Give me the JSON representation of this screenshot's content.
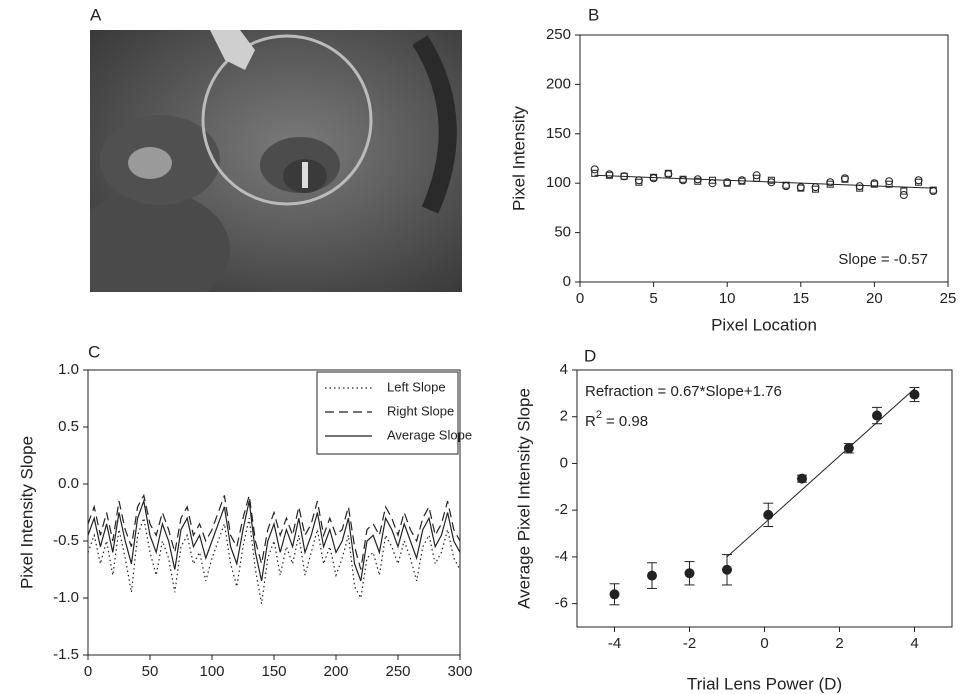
{
  "chart_data": [
    {
      "type": "image",
      "label": "A"
    },
    {
      "type": "scatter",
      "label": "B",
      "color": "#222",
      "x_label": "Pixel Location",
      "y_label": "Pixel Intensity",
      "xlim": [
        0,
        25
      ],
      "xticks": [
        0,
        5,
        10,
        15,
        20,
        25
      ],
      "ylim": [
        0,
        250
      ],
      "yticks": [
        0,
        50,
        100,
        150,
        200,
        250
      ],
      "annotation": "Slope = -0.57",
      "series": [
        {
          "marker": "square",
          "x": [
            1,
            2,
            3,
            4,
            5,
            6,
            7,
            8,
            9,
            10,
            11,
            12,
            13,
            14,
            15,
            16,
            17,
            18,
            19,
            20,
            21,
            22,
            23,
            24
          ],
          "values": [
            110,
            108,
            107,
            101,
            106,
            110,
            104,
            102,
            103,
            100,
            102,
            105,
            103,
            98,
            95,
            94,
            99,
            104,
            95,
            99,
            99,
            92,
            101,
            93
          ]
        },
        {
          "marker": "circle",
          "x": [
            1,
            2,
            3,
            4,
            5,
            6,
            7,
            8,
            9,
            10,
            11,
            12,
            13,
            14,
            15,
            16,
            17,
            18,
            19,
            20,
            21,
            22,
            23,
            24
          ],
          "values": [
            114,
            109,
            107,
            103,
            105,
            109,
            103,
            104,
            100,
            101,
            103,
            108,
            101,
            97,
            96,
            96,
            101,
            105,
            97,
            100,
            102,
            88,
            103,
            92
          ]
        },
        {
          "marker": "line",
          "x": [
            1,
            24
          ],
          "values": [
            108,
            95
          ]
        }
      ]
    },
    {
      "type": "line",
      "label": "C",
      "color": "#222",
      "x_label": "Frame #",
      "y_label": "Pixel Intensity Slope",
      "xlim": [
        0,
        300
      ],
      "xticks": [
        0,
        50,
        100,
        150,
        200,
        250,
        300
      ],
      "ylim": [
        -1.5,
        1.0
      ],
      "yticks": [
        {
          "value": -1.5,
          "label": "-1.5"
        },
        {
          "value": -1.0,
          "label": "-1.0"
        },
        -0.5,
        {
          "value": 0.0,
          "label": "0.0"
        },
        0.5,
        {
          "value": 1.0,
          "label": "1.0"
        }
      ],
      "legend": "upper right",
      "x": [
        0,
        5,
        10,
        15,
        20,
        25,
        30,
        35,
        40,
        45,
        50,
        55,
        60,
        65,
        70,
        75,
        80,
        85,
        90,
        95,
        100,
        105,
        110,
        115,
        120,
        125,
        130,
        135,
        140,
        145,
        150,
        155,
        160,
        165,
        170,
        175,
        180,
        185,
        190,
        195,
        200,
        205,
        210,
        215,
        220,
        225,
        230,
        235,
        240,
        245,
        250,
        255,
        260,
        265,
        270,
        275,
        280,
        285,
        290,
        295,
        300
      ],
      "series": [
        {
          "name": "Left Slope",
          "style": "dotted",
          "values": [
            -0.6,
            -0.45,
            -0.7,
            -0.5,
            -0.8,
            -0.4,
            -0.65,
            -0.95,
            -0.45,
            -0.3,
            -0.6,
            -0.8,
            -0.5,
            -0.65,
            -0.95,
            -0.55,
            -0.45,
            -0.7,
            -0.6,
            -0.85,
            -0.65,
            -0.5,
            -0.35,
            -0.7,
            -0.9,
            -0.55,
            -0.3,
            -0.75,
            -1.05,
            -0.65,
            -0.5,
            -0.8,
            -0.55,
            -0.7,
            -0.45,
            -0.8,
            -0.6,
            -0.4,
            -0.7,
            -0.55,
            -0.8,
            -0.65,
            -0.45,
            -0.9,
            -1.0,
            -0.65,
            -0.6,
            -0.8,
            -0.45,
            -0.55,
            -0.7,
            -0.5,
            -0.65,
            -0.85,
            -0.55,
            -0.45,
            -0.7,
            -0.6,
            -0.4,
            -0.65,
            -0.75
          ]
        },
        {
          "name": "Right Slope",
          "style": "dashed",
          "values": [
            -0.35,
            -0.2,
            -0.45,
            -0.25,
            -0.5,
            -0.15,
            -0.4,
            -0.55,
            -0.2,
            -0.1,
            -0.35,
            -0.45,
            -0.25,
            -0.4,
            -0.6,
            -0.3,
            -0.2,
            -0.45,
            -0.35,
            -0.5,
            -0.4,
            -0.25,
            -0.1,
            -0.45,
            -0.55,
            -0.3,
            -0.1,
            -0.5,
            -0.7,
            -0.4,
            -0.25,
            -0.45,
            -0.3,
            -0.45,
            -0.2,
            -0.45,
            -0.35,
            -0.15,
            -0.45,
            -0.3,
            -0.45,
            -0.4,
            -0.2,
            -0.55,
            -0.75,
            -0.4,
            -0.35,
            -0.45,
            -0.2,
            -0.3,
            -0.45,
            -0.25,
            -0.4,
            -0.5,
            -0.3,
            -0.2,
            -0.45,
            -0.35,
            -0.15,
            -0.4,
            -0.5
          ]
        },
        {
          "name": "Average Slope",
          "style": "solid",
          "values": [
            -0.45,
            -0.3,
            -0.55,
            -0.35,
            -0.6,
            -0.25,
            -0.5,
            -0.7,
            -0.3,
            -0.15,
            -0.45,
            -0.6,
            -0.35,
            -0.5,
            -0.75,
            -0.4,
            -0.3,
            -0.55,
            -0.45,
            -0.65,
            -0.5,
            -0.35,
            -0.2,
            -0.55,
            -0.7,
            -0.4,
            -0.15,
            -0.6,
            -0.85,
            -0.5,
            -0.35,
            -0.6,
            -0.4,
            -0.55,
            -0.3,
            -0.6,
            -0.45,
            -0.25,
            -0.55,
            -0.4,
            -0.6,
            -0.5,
            -0.3,
            -0.7,
            -0.85,
            -0.5,
            -0.45,
            -0.6,
            -0.3,
            -0.4,
            -0.55,
            -0.35,
            -0.5,
            -0.65,
            -0.4,
            -0.3,
            -0.55,
            -0.45,
            -0.25,
            -0.5,
            -0.6
          ]
        }
      ]
    },
    {
      "type": "scatter",
      "label": "D",
      "color": "#222",
      "x_label": "Trial Lens Power (D)",
      "y_label": "Average Pixel Intensity Slope",
      "xlim": [
        -5,
        5
      ],
      "xticks": [
        -4,
        -2,
        0,
        2,
        4
      ],
      "ylim": [
        -7,
        4
      ],
      "yticks": [
        -6,
        -4,
        -2,
        0,
        2,
        4
      ],
      "annotation": "Refraction = 0.67*Slope+1.76",
      "r2": {
        "symbol": "R",
        "exponent": "2",
        "value": "= 0.98"
      },
      "series": [
        {
          "marker": "dot",
          "x": [
            -4,
            -3,
            -2,
            -1,
            0.1,
            1,
            2.25,
            3,
            4
          ],
          "values": [
            -5.6,
            -4.8,
            -4.7,
            -4.55,
            -2.2,
            -0.65,
            0.65,
            2.05,
            2.95
          ],
          "errors": [
            0.45,
            0.55,
            0.5,
            0.65,
            0.5,
            0.15,
            0.2,
            0.35,
            0.3
          ]
        },
        {
          "marker": "line",
          "x": [
            -1,
            4
          ],
          "values": [
            -4,
            3.2
          ]
        }
      ]
    }
  ]
}
